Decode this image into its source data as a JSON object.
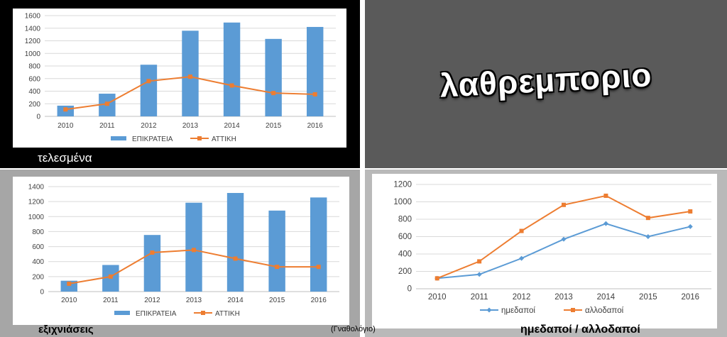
{
  "slide": {
    "title": "λαθρεμποριο",
    "caption_top_left": "τελεσμένα",
    "caption_bottom_left": "εξιχνιάσεις",
    "caption_middle": "(Γναθολόγιο)",
    "caption_bottom_right": "ημεδαποί / αλλοδαποί"
  },
  "chart_data": [
    {
      "type": "bar",
      "categories": [
        "2010",
        "2011",
        "2012",
        "2013",
        "2014",
        "2015",
        "2016"
      ],
      "ylim": [
        0,
        1600
      ],
      "yticks": [
        0,
        200,
        400,
        600,
        800,
        1000,
        1200,
        1400,
        1600
      ],
      "series": [
        {
          "name": "ΕΠΙΚΡΑΤΕΙΑ",
          "kind": "bar",
          "color": "#5b9bd5",
          "values": [
            170,
            360,
            820,
            1360,
            1490,
            1230,
            1420
          ]
        },
        {
          "name": "ΑΤΤΙΚΗ",
          "kind": "line",
          "color": "#ed7d31",
          "values": [
            110,
            200,
            560,
            630,
            490,
            370,
            350
          ]
        }
      ],
      "legend": "bottom",
      "grid": true
    },
    {
      "type": "bar",
      "categories": [
        "2010",
        "2011",
        "2012",
        "2013",
        "2014",
        "2015",
        "2016"
      ],
      "ylim": [
        0,
        1400
      ],
      "yticks": [
        0,
        200,
        400,
        600,
        800,
        1000,
        1200,
        1400
      ],
      "series": [
        {
          "name": "ΕΠΙΚΡΑΤΕΙΑ",
          "kind": "bar",
          "color": "#5b9bd5",
          "values": [
            145,
            355,
            755,
            1185,
            1315,
            1080,
            1255
          ]
        },
        {
          "name": "ΑΤΤΙΚΗ",
          "kind": "line",
          "color": "#ed7d31",
          "values": [
            105,
            200,
            520,
            555,
            440,
            330,
            330
          ]
        }
      ],
      "legend": "bottom",
      "grid": true
    },
    {
      "type": "line",
      "categories": [
        "2010",
        "2011",
        "2012",
        "2013",
        "2014",
        "2015",
        "2016"
      ],
      "ylim": [
        0,
        1200
      ],
      "yticks": [
        0,
        200,
        400,
        600,
        800,
        1000,
        1200
      ],
      "series": [
        {
          "name": "ημεδαποί",
          "kind": "line",
          "marker": "diamond",
          "color": "#5b9bd5",
          "values": [
            120,
            165,
            350,
            570,
            750,
            600,
            715
          ]
        },
        {
          "name": "αλλοδαποί",
          "kind": "line",
          "marker": "square",
          "color": "#ed7d31",
          "values": [
            120,
            315,
            665,
            965,
            1070,
            815,
            890
          ]
        }
      ],
      "legend": "bottom",
      "grid": true
    }
  ]
}
